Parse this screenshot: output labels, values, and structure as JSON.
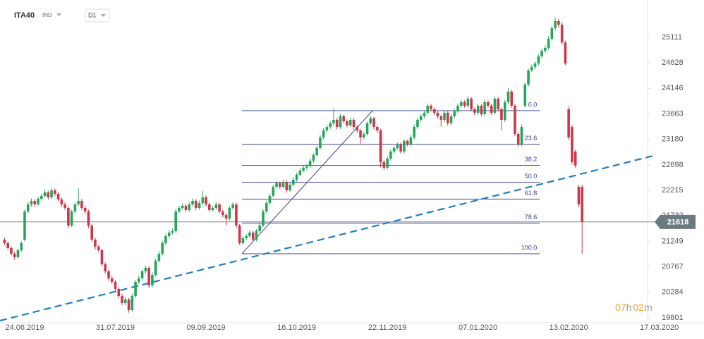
{
  "header": {
    "symbol": "ITA40",
    "kind": "IND",
    "interval": "D1"
  },
  "countdown": [
    "07",
    "h",
    "02",
    "m"
  ],
  "chart_data": {
    "type": "candlestick",
    "up_color": "#26a65b",
    "down_color": "#d0364a",
    "xlim": [
      -7.35,
      202.3
    ],
    "ylim": [
      19708,
      25818
    ],
    "xticks": [
      {
        "value": 0,
        "label": "24.06.2019"
      },
      {
        "value": 27,
        "label": "31.07.2019"
      },
      {
        "value": 54,
        "label": "09.09.2019"
      },
      {
        "value": 81,
        "label": "16.10.2019"
      },
      {
        "value": 108,
        "label": "22.11.2019"
      },
      {
        "value": 135,
        "label": "07.01.2020"
      },
      {
        "value": 162,
        "label": "13.02.2020"
      },
      {
        "value": 189,
        "label": "17.03.2020"
      }
    ],
    "yticks": [
      19801,
      20284,
      20767,
      21249,
      21732,
      22215,
      22698,
      23180,
      23663,
      24146,
      24628,
      25111
    ],
    "first_index": -6,
    "candles": [
      [
        21282,
        21320,
        21180,
        21216
      ],
      [
        21216,
        21250,
        21090,
        21122
      ],
      [
        21122,
        21160,
        20980,
        21016
      ],
      [
        21016,
        21050,
        20900,
        20949
      ],
      [
        20949,
        21110,
        20920,
        21082
      ],
      [
        21082,
        21250,
        21050,
        21216
      ],
      [
        21282,
        21850,
        21250,
        21816
      ],
      [
        21816,
        21990,
        21780,
        21949
      ],
      [
        21949,
        22060,
        21910,
        22016
      ],
      [
        22016,
        22050,
        21900,
        21949
      ],
      [
        21949,
        22100,
        21920,
        22056
      ],
      [
        22056,
        22150,
        22020,
        22110
      ],
      [
        22110,
        22230,
        22080,
        22176
      ],
      [
        22176,
        22210,
        22040,
        22083
      ],
      [
        22083,
        22250,
        22050,
        22216
      ],
      [
        22216,
        22250,
        22110,
        22150
      ],
      [
        22150,
        22180,
        22000,
        22043
      ],
      [
        22043,
        22080,
        21900,
        21949
      ],
      [
        21949,
        21990,
        21840,
        21883
      ],
      [
        21883,
        21920,
        21500,
        21549
      ],
      [
        21549,
        21850,
        21520,
        21816
      ],
      [
        21816,
        21990,
        21780,
        21949
      ],
      [
        21949,
        22250,
        21920,
        22016
      ],
      [
        22016,
        22050,
        21840,
        21883
      ],
      [
        21883,
        21920,
        21770,
        21816
      ],
      [
        21816,
        21850,
        21500,
        21549
      ],
      [
        21549,
        21580,
        21240,
        21282
      ],
      [
        21282,
        21320,
        21100,
        21149
      ],
      [
        21149,
        21180,
        21040,
        21082
      ],
      [
        21082,
        21110,
        20770,
        20816
      ],
      [
        20816,
        20850,
        20640,
        20682
      ],
      [
        20682,
        20720,
        20500,
        20549
      ],
      [
        20549,
        20600,
        20440,
        20482
      ],
      [
        20482,
        20520,
        20300,
        20349
      ],
      [
        20349,
        20380,
        20170,
        20215
      ],
      [
        20215,
        20260,
        20040,
        20082
      ],
      [
        20082,
        20200,
        20040,
        20149
      ],
      [
        20149,
        20180,
        19900,
        19948
      ],
      [
        19948,
        20260,
        19920,
        20215
      ],
      [
        20215,
        20520,
        20180,
        20482
      ],
      [
        20482,
        20600,
        20440,
        20549
      ],
      [
        20549,
        20720,
        20510,
        20682
      ],
      [
        20682,
        20790,
        20640,
        20749
      ],
      [
        20749,
        20780,
        20370,
        20416
      ],
      [
        20416,
        20660,
        20380,
        20615
      ],
      [
        20615,
        20920,
        20580,
        20882
      ],
      [
        20882,
        21060,
        20850,
        21016
      ],
      [
        21016,
        21260,
        20980,
        21216
      ],
      [
        21216,
        21390,
        21180,
        21349
      ],
      [
        21349,
        21460,
        21310,
        21416
      ],
      [
        21416,
        21490,
        21380,
        21442
      ],
      [
        21442,
        21860,
        21410,
        21816
      ],
      [
        21816,
        21920,
        21780,
        21883
      ],
      [
        21883,
        21970,
        21850,
        21923
      ],
      [
        21923,
        21960,
        21800,
        21843
      ],
      [
        21843,
        21990,
        21810,
        21949
      ],
      [
        21949,
        22060,
        21910,
        22016
      ],
      [
        22016,
        22050,
        21840,
        21883
      ],
      [
        21883,
        22020,
        21850,
        21976
      ],
      [
        21976,
        22200,
        21940,
        22083
      ],
      [
        22083,
        22120,
        21910,
        21949
      ],
      [
        21949,
        21980,
        21800,
        21843
      ],
      [
        21843,
        21920,
        21810,
        21883
      ],
      [
        21883,
        21990,
        21850,
        21949
      ],
      [
        21949,
        21980,
        21780,
        21816
      ],
      [
        21816,
        21850,
        21710,
        21749
      ],
      [
        21749,
        21780,
        21550,
        21682
      ],
      [
        21682,
        21920,
        21650,
        21883
      ],
      [
        21883,
        21990,
        21850,
        21949
      ],
      [
        21949,
        21980,
        21500,
        21549
      ],
      [
        21549,
        21580,
        21180,
        21216
      ],
      [
        21216,
        21350,
        21180,
        21309
      ],
      [
        21309,
        21390,
        21270,
        21349
      ],
      [
        21349,
        21460,
        21310,
        21416
      ],
      [
        21416,
        21450,
        21240,
        21282
      ],
      [
        21282,
        21480,
        21250,
        21442
      ],
      [
        21442,
        21590,
        21410,
        21549
      ],
      [
        21549,
        21860,
        21520,
        21816
      ],
      [
        21816,
        22020,
        21780,
        21976
      ],
      [
        21976,
        22150,
        21940,
        22110
      ],
      [
        22110,
        22320,
        22080,
        22283
      ],
      [
        22283,
        22390,
        22250,
        22350
      ],
      [
        22350,
        22380,
        22240,
        22283
      ],
      [
        22283,
        22420,
        22250,
        22376
      ],
      [
        22376,
        22410,
        22170,
        22216
      ],
      [
        22216,
        22360,
        22180,
        22323
      ],
      [
        22323,
        22460,
        22290,
        22416
      ],
      [
        22416,
        22550,
        22380,
        22510
      ],
      [
        22510,
        22630,
        22480,
        22590
      ],
      [
        22590,
        22690,
        22560,
        22643
      ],
      [
        22643,
        22710,
        22610,
        22670
      ],
      [
        22670,
        22820,
        22640,
        22776
      ],
      [
        22776,
        22920,
        22740,
        22883
      ],
      [
        22883,
        23060,
        22850,
        23017
      ],
      [
        23017,
        23260,
        22980,
        23217
      ],
      [
        23217,
        23390,
        23180,
        23350
      ],
      [
        23350,
        23460,
        23310,
        23417
      ],
      [
        23417,
        23520,
        23380,
        23484
      ],
      [
        23484,
        23760,
        23450,
        23550
      ],
      [
        23550,
        23590,
        23370,
        23417
      ],
      [
        23417,
        23660,
        23380,
        23617
      ],
      [
        23617,
        23650,
        23480,
        23524
      ],
      [
        23524,
        23560,
        23400,
        23444
      ],
      [
        23444,
        23590,
        23410,
        23550
      ],
      [
        23550,
        23580,
        23370,
        23417
      ],
      [
        23417,
        23450,
        23300,
        23350
      ],
      [
        23350,
        23380,
        23100,
        23217
      ],
      [
        23217,
        23320,
        23180,
        23283
      ],
      [
        23283,
        23520,
        23250,
        23484
      ],
      [
        23484,
        23620,
        23450,
        23577
      ],
      [
        23577,
        23610,
        23370,
        23417
      ],
      [
        23417,
        23450,
        23300,
        23350
      ],
      [
        23350,
        23380,
        22650,
        22750
      ],
      [
        22750,
        22790,
        22600,
        22643
      ],
      [
        22643,
        22860,
        22610,
        22816
      ],
      [
        22816,
        22990,
        22780,
        22950
      ],
      [
        22950,
        23060,
        22910,
        23017
      ],
      [
        23017,
        23120,
        22980,
        23083
      ],
      [
        23083,
        23120,
        22910,
        22950
      ],
      [
        22950,
        23190,
        22910,
        23150
      ],
      [
        23150,
        23180,
        23040,
        23083
      ],
      [
        23083,
        23260,
        23050,
        23217
      ],
      [
        23217,
        23460,
        23180,
        23417
      ],
      [
        23417,
        23590,
        23380,
        23550
      ],
      [
        23550,
        23660,
        23510,
        23617
      ],
      [
        23617,
        23730,
        23580,
        23684
      ],
      [
        23684,
        23860,
        23650,
        23817
      ],
      [
        23817,
        23850,
        23710,
        23750
      ],
      [
        23750,
        23780,
        23640,
        23684
      ],
      [
        23684,
        23720,
        23570,
        23617
      ],
      [
        23617,
        23650,
        23420,
        23550
      ],
      [
        23550,
        23730,
        23510,
        23684
      ],
      [
        23684,
        23720,
        23440,
        23484
      ],
      [
        23484,
        23660,
        23450,
        23617
      ],
      [
        23617,
        23750,
        23580,
        23710
      ],
      [
        23710,
        23860,
        23680,
        23817
      ],
      [
        23817,
        23930,
        23780,
        23884
      ],
      [
        23884,
        23920,
        23780,
        23817
      ],
      [
        23817,
        23990,
        23780,
        23950
      ],
      [
        23950,
        23980,
        23710,
        23750
      ],
      [
        23750,
        23780,
        23640,
        23684
      ],
      [
        23684,
        23860,
        23650,
        23817
      ],
      [
        23817,
        23850,
        23620,
        23657
      ],
      [
        23657,
        23930,
        23620,
        23884
      ],
      [
        23884,
        23920,
        23780,
        23817
      ],
      [
        23817,
        23850,
        23640,
        23684
      ],
      [
        23684,
        23990,
        23650,
        23950
      ],
      [
        23950,
        23980,
        23710,
        23750
      ],
      [
        23750,
        23780,
        23350,
        23550
      ],
      [
        23550,
        23930,
        23510,
        23884
      ],
      [
        23884,
        24150,
        23850,
        24084
      ],
      [
        24084,
        24120,
        23780,
        23817
      ],
      [
        23817,
        23850,
        23240,
        23283
      ],
      [
        23283,
        23320,
        23040,
        23083
      ],
      [
        23083,
        23460,
        23050,
        23417
      ],
      [
        23817,
        24260,
        23780,
        24217
      ],
      [
        24217,
        24520,
        24180,
        24484
      ],
      [
        24484,
        24600,
        24450,
        24551
      ],
      [
        24551,
        24660,
        24510,
        24617
      ],
      [
        24617,
        24790,
        24580,
        24751
      ],
      [
        24751,
        24900,
        24720,
        24857
      ],
      [
        24857,
        24960,
        24820,
        24911
      ],
      [
        24911,
        25130,
        24880,
        25084
      ],
      [
        25084,
        25330,
        25050,
        25284
      ],
      [
        25284,
        25480,
        25250,
        25418
      ],
      [
        25418,
        25460,
        25300,
        25351
      ],
      [
        25351,
        25400,
        24970,
        25014
      ],
      [
        25014,
        25050,
        24580,
        24617
      ],
      [
        23750,
        23800,
        23170,
        23217
      ],
      [
        23417,
        23450,
        22700,
        22750
      ],
      [
        22950,
        22980,
        22640,
        22683
      ],
      [
        22283,
        22320,
        21900,
        21949
      ],
      [
        22283,
        22320,
        21016,
        21618
      ]
    ],
    "last_price": 21618,
    "fib": {
      "x": [
        64.7,
        153.4
      ],
      "levels": [
        {
          "label": "0.0",
          "value": 23724
        },
        {
          "label": "23.6",
          "value": 23085
        },
        {
          "label": "38.2",
          "value": 22690
        },
        {
          "label": "50.0",
          "value": 22370
        },
        {
          "label": "61.8",
          "value": 22050
        },
        {
          "label": "78.6",
          "value": 21596
        },
        {
          "label": "100.0",
          "value": 21016
        }
      ],
      "diagonal": {
        "x": [
          64.7,
          103.6
        ],
        "y": [
          21016,
          23724
        ]
      }
    },
    "trendline": {
      "x": [
        -7.35,
        188
      ],
      "y": [
        19748,
        22883
      ]
    }
  }
}
